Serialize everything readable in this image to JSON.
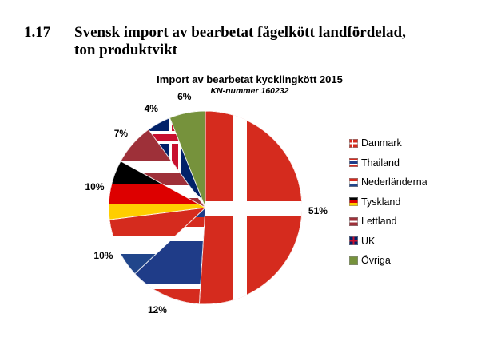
{
  "section": {
    "number": "1.17",
    "title_line1": "Svensk import av bearbetat fågelkött landfördelad,",
    "title_line2": "ton produktvikt"
  },
  "chart_data": {
    "type": "pie",
    "title": "Import av bearbetat kycklingkött 2015",
    "subtitle": "KN-nummer 160232",
    "categories": [
      "Danmark",
      "Thailand",
      "Nederländerna",
      "Tyskland",
      "Lettland",
      "UK",
      "Övriga"
    ],
    "values": [
      51,
      12,
      10,
      10,
      7,
      4,
      6
    ],
    "labels": [
      "51%",
      "12%",
      "10%",
      "10%",
      "7%",
      "4%",
      "6%"
    ],
    "slice_styles": [
      "flag-dk",
      "flag-th",
      "flag-nl",
      "flag-de",
      "flag-lv",
      "flag-uk",
      "solid-green"
    ],
    "colors": {
      "dk_red": "#d52b1e",
      "white": "#ffffff",
      "th_blue": "#1f3c88",
      "nl_blue": "#21468b",
      "de_black": "#000000",
      "de_red": "#dd0000",
      "de_gold": "#ffce00",
      "lv_red": "#9e3039",
      "uk_blue": "#012169",
      "uk_red": "#c8102e",
      "ovriga_green": "#76923c"
    },
    "legend_position": "right",
    "start_angle_deg": 0,
    "direction": "clockwise"
  }
}
